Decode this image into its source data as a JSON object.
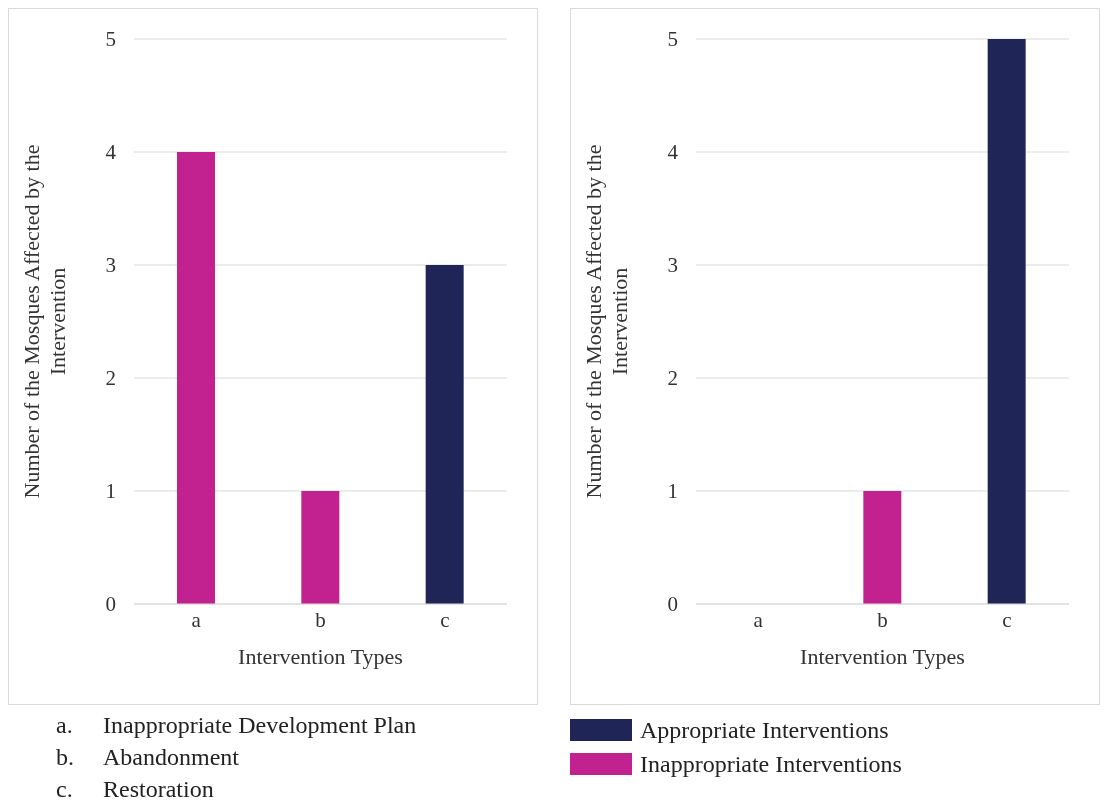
{
  "chart_data": [
    {
      "type": "bar",
      "categories": [
        "a",
        "b",
        "c"
      ],
      "xlabel": "Intervention Types",
      "ylabel": "Number of the Mosques Affected by the Intervention",
      "stacked": true,
      "ylim": [
        0,
        5
      ],
      "yticks": [
        0,
        1,
        2,
        3,
        4,
        5
      ],
      "grid": "y",
      "series": [
        {
          "color": "#1f2557",
          "values": [
            null,
            null,
            3
          ]
        },
        {
          "color": "#c2228f",
          "values": [
            4,
            1,
            null
          ]
        }
      ],
      "annotations": [
        "a. Inappropriate Development Plan",
        "b. Abandonment",
        "c. Restoration"
      ]
    },
    {
      "type": "bar",
      "categories": [
        "a",
        "b",
        "c"
      ],
      "xlabel": "Intervention Types",
      "ylabel": "Number of the Mosques Affected by the Intervention",
      "stacked": true,
      "ylim": [
        0,
        5
      ],
      "yticks": [
        0,
        1,
        2,
        3,
        4,
        5
      ],
      "grid": "y",
      "legend": "bottom",
      "series": [
        {
          "name": "Appropriate Interventions",
          "color": "#1f2557",
          "values": [
            null,
            null,
            5
          ]
        },
        {
          "name": "Inappropriate Interventions",
          "color": "#c2228f",
          "values": [
            null,
            1,
            null
          ]
        }
      ]
    }
  ]
}
